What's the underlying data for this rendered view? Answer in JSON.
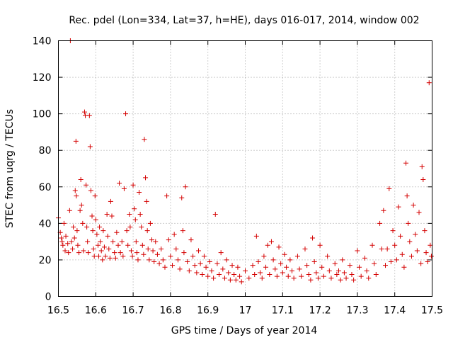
{
  "chart_data": {
    "type": "scatter",
    "title": "Rec. pdel (Lon=334, Lat=37, h=HE), days 016-017, 2014, window 002",
    "xlabel": "GPS time / Days of year 2014",
    "ylabel": "STEC from uqrg / TECUs",
    "xlim": [
      16.5,
      17.5
    ],
    "ylim": [
      0,
      140
    ],
    "xticks": [
      "16.5",
      "16.6",
      "16.7",
      "16.8",
      "16.9",
      "17",
      "17.1",
      "17.2",
      "17.3",
      "17.4",
      "17.5"
    ],
    "yticks": [
      "0",
      "20",
      "40",
      "60",
      "80",
      "100",
      "120",
      "140"
    ],
    "grid": true,
    "marker": "+",
    "color": "#d40000",
    "points": [
      [
        16.5,
        43
      ],
      [
        16.505,
        35
      ],
      [
        16.508,
        32
      ],
      [
        16.51,
        30
      ],
      [
        16.512,
        28
      ],
      [
        16.515,
        40
      ],
      [
        16.518,
        25
      ],
      [
        16.52,
        33
      ],
      [
        16.525,
        29
      ],
      [
        16.527,
        24
      ],
      [
        16.53,
        47
      ],
      [
        16.532,
        140
      ],
      [
        16.535,
        30
      ],
      [
        16.538,
        26
      ],
      [
        16.54,
        38
      ],
      [
        16.543,
        32
      ],
      [
        16.545,
        58
      ],
      [
        16.547,
        85
      ],
      [
        16.548,
        55
      ],
      [
        16.55,
        36
      ],
      [
        16.552,
        28
      ],
      [
        16.555,
        24
      ],
      [
        16.558,
        47
      ],
      [
        16.56,
        64
      ],
      [
        16.562,
        50
      ],
      [
        16.565,
        40
      ],
      [
        16.567,
        25
      ],
      [
        16.57,
        101
      ],
      [
        16.572,
        99
      ],
      [
        16.574,
        61
      ],
      [
        16.576,
        38
      ],
      [
        16.578,
        30
      ],
      [
        16.58,
        24
      ],
      [
        16.583,
        99
      ],
      [
        16.585,
        82
      ],
      [
        16.587,
        58
      ],
      [
        16.59,
        44
      ],
      [
        16.592,
        36
      ],
      [
        16.594,
        26
      ],
      [
        16.596,
        22
      ],
      [
        16.598,
        55
      ],
      [
        16.6,
        42
      ],
      [
        16.603,
        34
      ],
      [
        16.606,
        28
      ],
      [
        16.608,
        22
      ],
      [
        16.61,
        38
      ],
      [
        16.612,
        30
      ],
      [
        16.615,
        25
      ],
      [
        16.618,
        20
      ],
      [
        16.62,
        36
      ],
      [
        16.623,
        27
      ],
      [
        16.626,
        22
      ],
      [
        16.63,
        45
      ],
      [
        16.632,
        33
      ],
      [
        16.635,
        26
      ],
      [
        16.638,
        21
      ],
      [
        16.64,
        52
      ],
      [
        16.643,
        44
      ],
      [
        16.646,
        30
      ],
      [
        16.65,
        24
      ],
      [
        16.653,
        21
      ],
      [
        16.656,
        35
      ],
      [
        16.66,
        28
      ],
      [
        16.663,
        62
      ],
      [
        16.666,
        24
      ],
      [
        16.67,
        30
      ],
      [
        16.673,
        22
      ],
      [
        16.676,
        59
      ],
      [
        16.68,
        100
      ],
      [
        16.683,
        36
      ],
      [
        16.686,
        28
      ],
      [
        16.69,
        45
      ],
      [
        16.692,
        38
      ],
      [
        16.695,
        25
      ],
      [
        16.698,
        22
      ],
      [
        16.7,
        61
      ],
      [
        16.703,
        48
      ],
      [
        16.706,
        42
      ],
      [
        16.708,
        30
      ],
      [
        16.71,
        24
      ],
      [
        16.713,
        20
      ],
      [
        16.716,
        57
      ],
      [
        16.719,
        45
      ],
      [
        16.722,
        38
      ],
      [
        16.725,
        28
      ],
      [
        16.728,
        23
      ],
      [
        16.73,
        86
      ],
      [
        16.733,
        65
      ],
      [
        16.736,
        52
      ],
      [
        16.738,
        36
      ],
      [
        16.74,
        26
      ],
      [
        16.743,
        20
      ],
      [
        16.746,
        40
      ],
      [
        16.75,
        31
      ],
      [
        16.753,
        25
      ],
      [
        16.756,
        19
      ],
      [
        16.76,
        30
      ],
      [
        16.765,
        23
      ],
      [
        16.77,
        18
      ],
      [
        16.775,
        26
      ],
      [
        16.78,
        20
      ],
      [
        16.785,
        16
      ],
      [
        16.79,
        55
      ],
      [
        16.795,
        31
      ],
      [
        16.8,
        22
      ],
      [
        16.805,
        17
      ],
      [
        16.81,
        34
      ],
      [
        16.815,
        26
      ],
      [
        16.82,
        20
      ],
      [
        16.825,
        15
      ],
      [
        16.83,
        54
      ],
      [
        16.833,
        36
      ],
      [
        16.836,
        24
      ],
      [
        16.84,
        60
      ],
      [
        16.845,
        19
      ],
      [
        16.85,
        14
      ],
      [
        16.855,
        31
      ],
      [
        16.86,
        22
      ],
      [
        16.865,
        17
      ],
      [
        16.87,
        13
      ],
      [
        16.875,
        25
      ],
      [
        16.88,
        18
      ],
      [
        16.885,
        12
      ],
      [
        16.89,
        22
      ],
      [
        16.895,
        16
      ],
      [
        16.9,
        11
      ],
      [
        16.905,
        19
      ],
      [
        16.91,
        14
      ],
      [
        16.915,
        10
      ],
      [
        16.92,
        45
      ],
      [
        16.925,
        18
      ],
      [
        16.93,
        12
      ],
      [
        16.935,
        24
      ],
      [
        16.94,
        15
      ],
      [
        16.945,
        10
      ],
      [
        16.95,
        20
      ],
      [
        16.955,
        13
      ],
      [
        16.96,
        9
      ],
      [
        16.965,
        17
      ],
      [
        16.97,
        12
      ],
      [
        16.975,
        9
      ],
      [
        16.98,
        16
      ],
      [
        16.985,
        11
      ],
      [
        16.99,
        8
      ],
      [
        17.0,
        14
      ],
      [
        17.01,
        10
      ],
      [
        17.02,
        17
      ],
      [
        17.025,
        12
      ],
      [
        17.03,
        33
      ],
      [
        17.035,
        19
      ],
      [
        17.04,
        13
      ],
      [
        17.045,
        10
      ],
      [
        17.05,
        22
      ],
      [
        17.055,
        16
      ],
      [
        17.06,
        28
      ],
      [
        17.065,
        12
      ],
      [
        17.07,
        30
      ],
      [
        17.075,
        20
      ],
      [
        17.08,
        15
      ],
      [
        17.085,
        11
      ],
      [
        17.09,
        27
      ],
      [
        17.095,
        18
      ],
      [
        17.1,
        13
      ],
      [
        17.105,
        23
      ],
      [
        17.11,
        16
      ],
      [
        17.115,
        11
      ],
      [
        17.12,
        20
      ],
      [
        17.125,
        14
      ],
      [
        17.13,
        10
      ],
      [
        17.14,
        22
      ],
      [
        17.145,
        15
      ],
      [
        17.15,
        11
      ],
      [
        17.16,
        26
      ],
      [
        17.165,
        17
      ],
      [
        17.17,
        12
      ],
      [
        17.175,
        9
      ],
      [
        17.18,
        32
      ],
      [
        17.185,
        19
      ],
      [
        17.19,
        13
      ],
      [
        17.195,
        10
      ],
      [
        17.2,
        28
      ],
      [
        17.205,
        16
      ],
      [
        17.21,
        11
      ],
      [
        17.22,
        22
      ],
      [
        17.225,
        14
      ],
      [
        17.23,
        10
      ],
      [
        17.24,
        18
      ],
      [
        17.245,
        12
      ],
      [
        17.25,
        14
      ],
      [
        17.255,
        9
      ],
      [
        17.26,
        20
      ],
      [
        17.265,
        13
      ],
      [
        17.27,
        10
      ],
      [
        17.28,
        17
      ],
      [
        17.285,
        12
      ],
      [
        17.29,
        9
      ],
      [
        17.3,
        25
      ],
      [
        17.305,
        16
      ],
      [
        17.31,
        11
      ],
      [
        17.32,
        21
      ],
      [
        17.325,
        14
      ],
      [
        17.33,
        10
      ],
      [
        17.34,
        28
      ],
      [
        17.345,
        18
      ],
      [
        17.35,
        12
      ],
      [
        17.36,
        40
      ],
      [
        17.365,
        26
      ],
      [
        17.37,
        47
      ],
      [
        17.375,
        17
      ],
      [
        17.38,
        26
      ],
      [
        17.385,
        59
      ],
      [
        17.39,
        19
      ],
      [
        17.395,
        36
      ],
      [
        17.4,
        28
      ],
      [
        17.405,
        20
      ],
      [
        17.41,
        49
      ],
      [
        17.415,
        33
      ],
      [
        17.42,
        23
      ],
      [
        17.425,
        16
      ],
      [
        17.43,
        73
      ],
      [
        17.433,
        55
      ],
      [
        17.436,
        40
      ],
      [
        17.44,
        30
      ],
      [
        17.445,
        22
      ],
      [
        17.45,
        50
      ],
      [
        17.455,
        34
      ],
      [
        17.46,
        25
      ],
      [
        17.465,
        46
      ],
      [
        17.47,
        18
      ],
      [
        17.473,
        71
      ],
      [
        17.476,
        64
      ],
      [
        17.48,
        36
      ],
      [
        17.484,
        24
      ],
      [
        17.488,
        19
      ],
      [
        17.492,
        117
      ],
      [
        17.495,
        28
      ],
      [
        17.498,
        22
      ]
    ]
  }
}
